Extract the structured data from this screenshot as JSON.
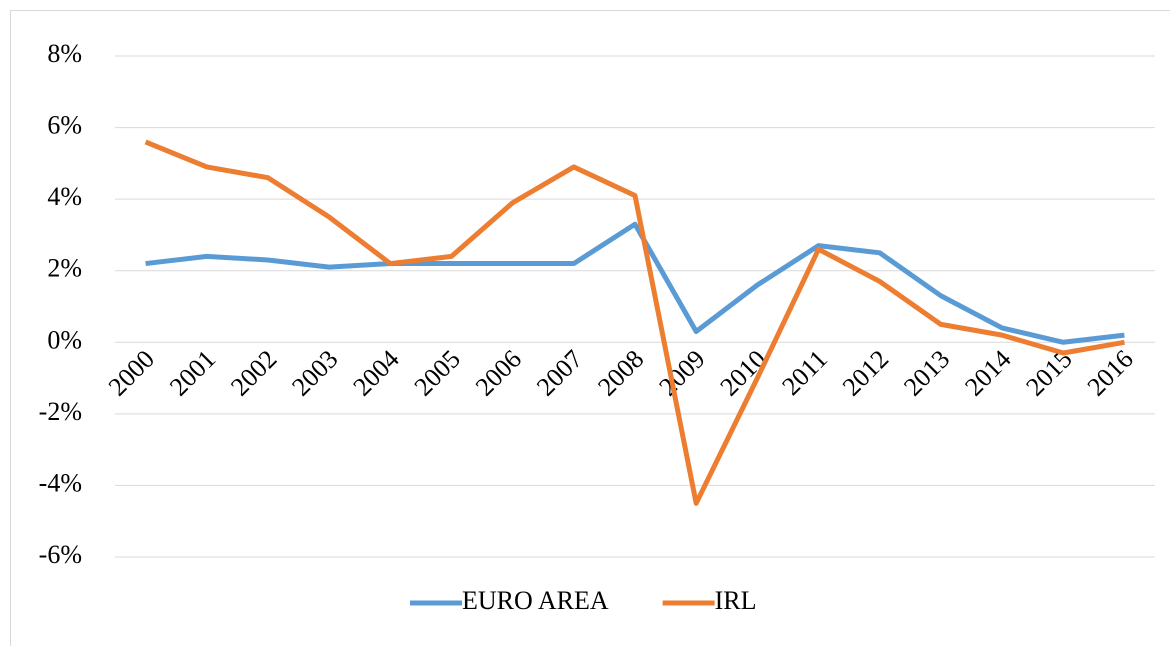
{
  "chart_data": {
    "type": "line",
    "categories": [
      "2000",
      "2001",
      "2002",
      "2003",
      "2004",
      "2005",
      "2006",
      "2007",
      "2008",
      "2009",
      "2010",
      "2011",
      "2012",
      "2013",
      "2014",
      "2015",
      "2016"
    ],
    "series": [
      {
        "name": "EURO AREA",
        "color": "#5b9bd5",
        "values": [
          2.2,
          2.4,
          2.3,
          2.1,
          2.2,
          2.2,
          2.2,
          2.2,
          3.3,
          0.3,
          1.6,
          2.7,
          2.5,
          1.3,
          0.4,
          0.0,
          0.2
        ]
      },
      {
        "name": "IRL",
        "color": "#ed7d31",
        "values": [
          5.6,
          4.9,
          4.6,
          3.5,
          2.2,
          2.4,
          3.9,
          4.9,
          4.1,
          -4.5,
          -1.0,
          2.6,
          1.7,
          0.5,
          0.2,
          -0.3,
          0.0
        ]
      }
    ],
    "ylim": [
      -6,
      8
    ],
    "yticks": [
      {
        "value": -6,
        "label": "-6%"
      },
      {
        "value": -4,
        "label": "-4%"
      },
      {
        "value": -2,
        "label": "-2%"
      },
      {
        "value": 0,
        "label": "0%"
      },
      {
        "value": 2,
        "label": "2%"
      },
      {
        "value": 4,
        "label": "4%"
      },
      {
        "value": 6,
        "label": "6%"
      },
      {
        "value": 8,
        "label": "8%"
      }
    ],
    "grid": true,
    "legend": "bottom"
  }
}
